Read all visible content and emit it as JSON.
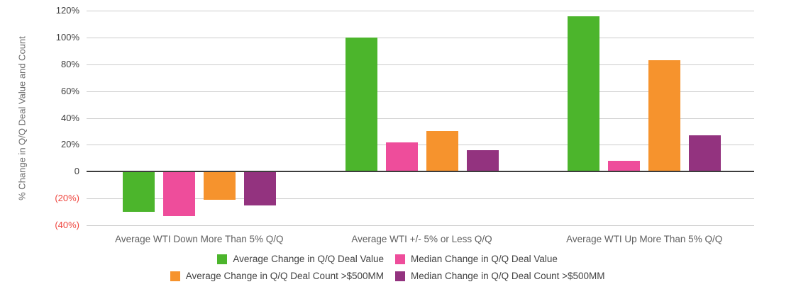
{
  "chart_data": {
    "type": "bar",
    "title": "",
    "xlabel": "",
    "ylabel": "% Change in Q/Q Deal Value and Count",
    "ylim": [
      -40,
      120
    ],
    "grid": true,
    "legend_position": "bottom",
    "yticks": [
      {
        "value": 120,
        "label": "120%",
        "negative": false
      },
      {
        "value": 100,
        "label": "100%",
        "negative": false
      },
      {
        "value": 80,
        "label": "80%",
        "negative": false
      },
      {
        "value": 60,
        "label": "60%",
        "negative": false
      },
      {
        "value": 40,
        "label": "40%",
        "negative": false
      },
      {
        "value": 20,
        "label": "20%",
        "negative": false
      },
      {
        "value": 0,
        "label": "0",
        "negative": false
      },
      {
        "value": -20,
        "label": "(20%)",
        "negative": true
      },
      {
        "value": -40,
        "label": "(40%)",
        "negative": true
      }
    ],
    "categories": [
      "Average WTI Down More Than 5% Q/Q",
      "Average WTI +/- 5% or Less Q/Q",
      "Average WTI Up More Than 5% Q/Q"
    ],
    "series": [
      {
        "name": "Average Change in Q/Q Deal Value",
        "color": "#4cb52c",
        "values": [
          -30,
          100,
          116
        ]
      },
      {
        "name": "Median Change in Q/Q Deal Value",
        "color": "#ee4d9b",
        "values": [
          -33,
          22,
          8
        ]
      },
      {
        "name": "Average Change in Q/Q Deal Count >$500MM",
        "color": "#f6932d",
        "values": [
          -21,
          30,
          83
        ]
      },
      {
        "name": "Median Change in Q/Q Deal Count >$500MM",
        "color": "#93337f",
        "values": [
          -25,
          16,
          27
        ]
      }
    ],
    "colors": {
      "gridline": "#cccccc",
      "zero_line": "#3c3c3c",
      "positive_tick": "#3f3f3f",
      "negative_tick": "#ef463f"
    }
  }
}
